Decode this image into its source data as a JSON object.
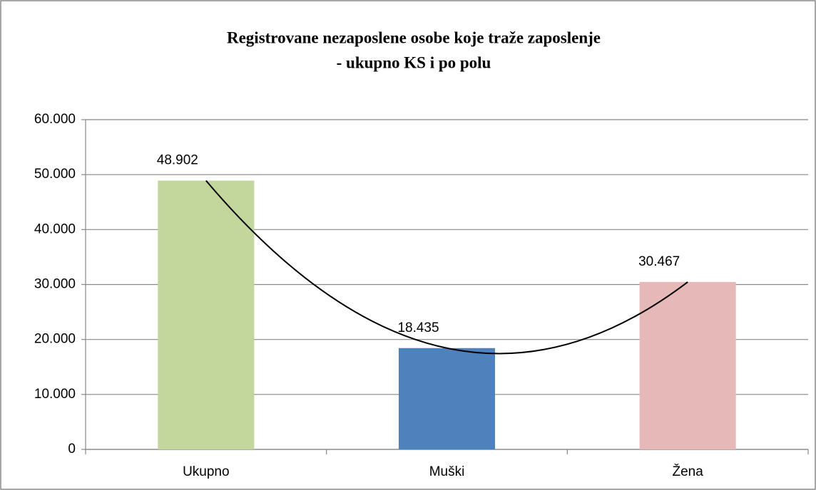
{
  "chart_data": {
    "type": "bar",
    "title": [
      "Registrovane nezaposlene osobe koje traže zaposlenje",
      "- ukupno KS i po polu"
    ],
    "categories": [
      "Ukupno",
      "Muški",
      "Žena"
    ],
    "values": [
      48902,
      18435,
      30467
    ],
    "value_labels": [
      "48.902",
      "18.435",
      "30.467"
    ],
    "colors": [
      "#c3d69b",
      "#4f81bd",
      "#e6b9b8"
    ],
    "trendline": "polynomial",
    "ylim": [
      0,
      60000
    ],
    "yticks": [
      0,
      {
        "value": 10000,
        "label": "10.000"
      },
      {
        "value": 20000,
        "label": "20.000"
      },
      {
        "value": 30000,
        "label": "30.000"
      },
      {
        "value": 40000,
        "label": "40.000"
      },
      {
        "value": 50000,
        "label": "50.000"
      },
      {
        "value": 60000,
        "label": "60.000"
      }
    ],
    "grid": true
  }
}
